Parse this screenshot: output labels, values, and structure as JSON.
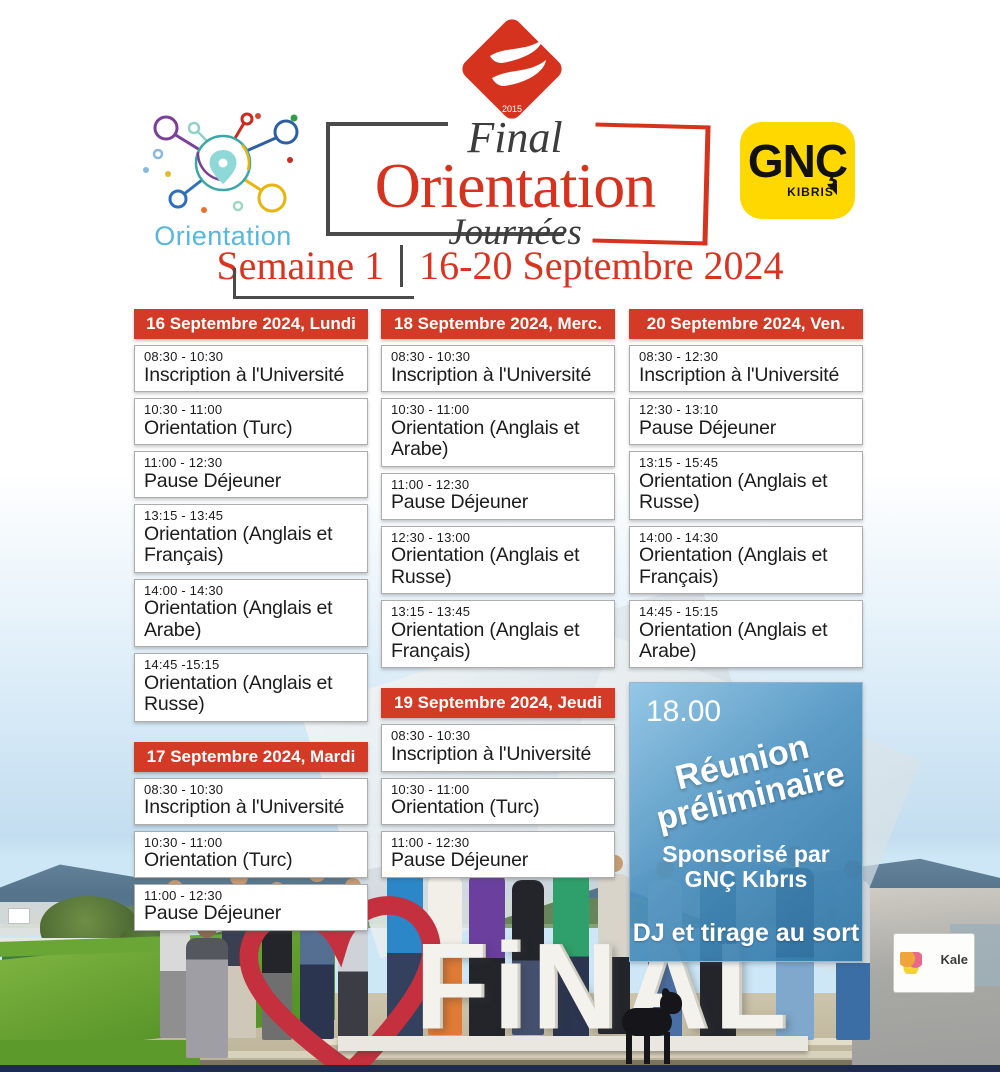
{
  "header": {
    "orientation_logo": {
      "label": "Orientation"
    },
    "final_logo": {
      "year": "2015",
      "line1": "Final",
      "line2": "Orientation",
      "line3": "Journées"
    },
    "gnc_logo": {
      "name": "GNÇ",
      "region": "KIBRIS"
    },
    "week": {
      "title": "Semaine 1",
      "dates": "16-20 Septembre 2024"
    }
  },
  "colors": {
    "accent_red": "#d33b26",
    "gnc_yellow": "#ffd800",
    "orientation_blue": "#58b7dc",
    "special_blue_top": "#8ec4e4",
    "special_blue_bottom": "#2e74a6"
  },
  "columns": [
    {
      "sections": [
        {
          "day": "16 Septembre 2024, Lundi",
          "events": [
            {
              "time": "08:30 - 10:30",
              "title": "Inscription à l'Université"
            },
            {
              "time": "10:30 - 11:00",
              "title": "Orientation (Turc)"
            },
            {
              "time": "11:00 - 12:30",
              "title": "Pause Déjeuner"
            },
            {
              "time": "13:15 - 13:45",
              "title": "Orientation (Anglais et Français)"
            },
            {
              "time": "14:00 - 14:30",
              "title": "Orientation (Anglais et Arabe)"
            },
            {
              "time": "14:45 -15:15",
              "title": "Orientation (Anglais et Russe)"
            }
          ]
        },
        {
          "day": "17 Septembre 2024, Mardi",
          "events": [
            {
              "time": "08:30 - 10:30",
              "title": "Inscription à l'Université"
            },
            {
              "time": "10:30 - 11:00",
              "title": "Orientation (Turc)"
            },
            {
              "time": "11:00 - 12:30",
              "title": "Pause Déjeuner"
            }
          ]
        }
      ]
    },
    {
      "sections": [
        {
          "day": "18 Septembre 2024, Merc.",
          "events": [
            {
              "time": "08:30 - 10:30",
              "title": "Inscription à l'Université"
            },
            {
              "time": "10:30 - 11:00",
              "title": "Orientation (Anglais et Arabe)"
            },
            {
              "time": "11:00 - 12:30",
              "title": "Pause Déjeuner"
            },
            {
              "time": "12:30 - 13:00",
              "title": "Orientation (Anglais et Russe)"
            },
            {
              "time": "13:15 - 13:45",
              "title": "Orientation (Anglais et Français)"
            }
          ]
        },
        {
          "day": "19 Septembre 2024, Jeudi",
          "events": [
            {
              "time": "08:30 - 10:30",
              "title": "Inscription à l'Université"
            },
            {
              "time": "10:30 - 11:00",
              "title": "Orientation (Turc)"
            },
            {
              "time": "11:00 - 12:30",
              "title": "Pause Déjeuner"
            }
          ]
        }
      ]
    },
    {
      "sections": [
        {
          "day": "20 Septembre 2024, Ven.",
          "events": [
            {
              "time": "08:30 - 12:30",
              "title": "Inscription à l'Université"
            },
            {
              "time": "12:30 - 13:10",
              "title": "Pause Déjeuner"
            },
            {
              "time": "13:15 - 15:45",
              "title": "Orientation (Anglais et Russe)"
            },
            {
              "time": "14:00 - 14:30",
              "title": "Orientation (Anglais et Français)"
            },
            {
              "time": "14:45 - 15:15",
              "title": "Orientation (Anglais et Arabe)"
            }
          ]
        }
      ]
    }
  ],
  "special_event": {
    "time": "18.00",
    "title": "Réunion préliminaire",
    "sponsor": "Sponsorisé par GNÇ Kıbrıs",
    "note": "DJ et tirage au sort"
  },
  "photo": {
    "sign_text": "FiNAL",
    "truck_label": "Kale"
  }
}
